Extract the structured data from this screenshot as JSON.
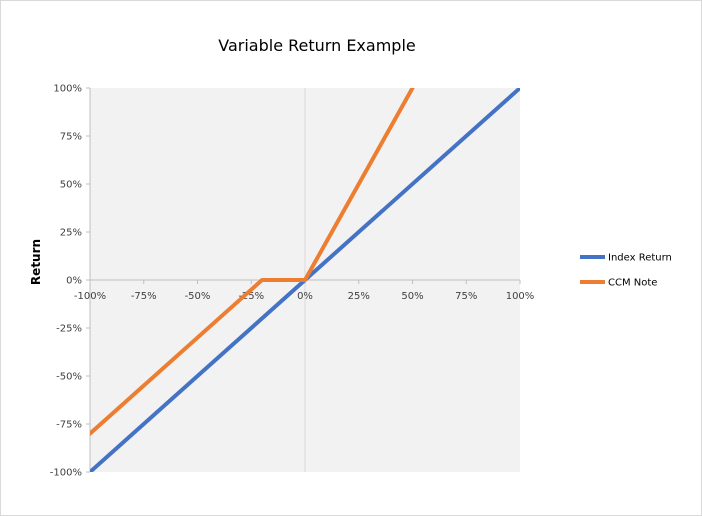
{
  "chart_data": {
    "type": "line",
    "title": "Variable Return Example",
    "xlabel": "",
    "ylabel": "Return",
    "x": [
      "-100%",
      "-75%",
      "-50%",
      "-25%",
      "-20%",
      "0%",
      "25%",
      "50%",
      "75%",
      "100%"
    ],
    "x_values": [
      -100,
      -75,
      -50,
      -25,
      -20,
      0,
      25,
      50,
      75,
      100
    ],
    "x_ticks": [
      "-100%",
      "-75%",
      "-50%",
      "-25%",
      "0%",
      "25%",
      "50%",
      "75%",
      "100%"
    ],
    "y_ticks": [
      "100%",
      "75%",
      "50%",
      "25%",
      "0%",
      "-25%",
      "-50%",
      "-75%",
      "-100%"
    ],
    "xlim": [
      -100,
      100
    ],
    "ylim": [
      -100,
      100
    ],
    "grid": false,
    "legend_position": "right",
    "series": [
      {
        "name": "Index Return",
        "color": "#4472C4",
        "points": [
          [
            -100,
            -100
          ],
          [
            100,
            100
          ]
        ]
      },
      {
        "name": "CCM Note",
        "color": "#ED7D31",
        "points": [
          [
            -100,
            -80
          ],
          [
            -20,
            0
          ],
          [
            0,
            0
          ],
          [
            50,
            100
          ]
        ]
      }
    ]
  }
}
